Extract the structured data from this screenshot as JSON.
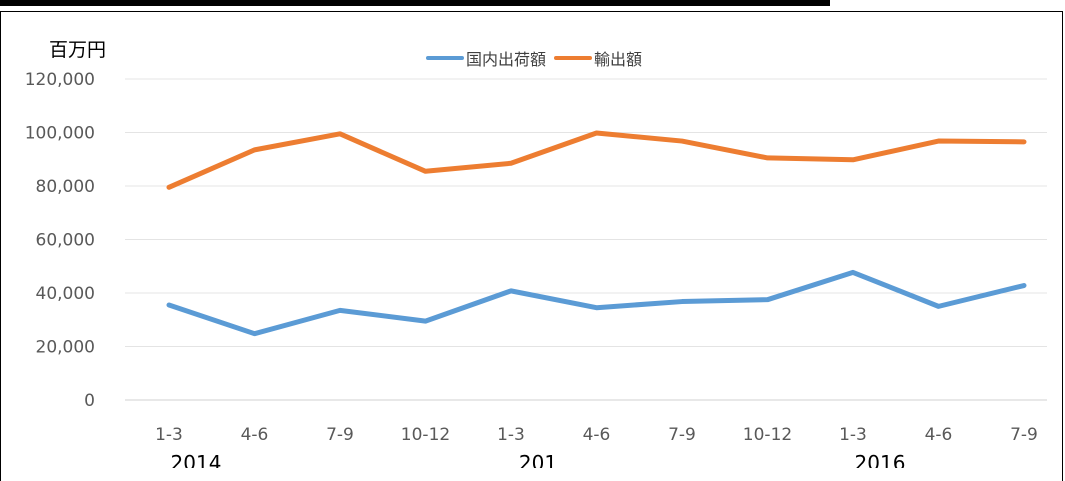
{
  "chart_data": {
    "type": "line",
    "unit_label": "百万円",
    "categories": [
      "1-3",
      "4-6",
      "7-9",
      "10-12",
      "1-3",
      "4-6",
      "7-9",
      "10-12",
      "1-3",
      "4-6",
      "7-9"
    ],
    "year_labels": [
      "2014",
      "201",
      "2016"
    ],
    "series": [
      {
        "name": "国内出荷額",
        "color": "#5b9bd5",
        "values": [
          35500,
          24800,
          33500,
          29500,
          40800,
          34500,
          36800,
          37500,
          47700,
          35000,
          42800
        ]
      },
      {
        "name": "輸出額",
        "color": "#ed7d31",
        "values": [
          79500,
          93500,
          99500,
          85500,
          88500,
          99800,
          96800,
          90500,
          89800,
          96800,
          96500
        ]
      }
    ],
    "y_ticks": [
      "0",
      "20,000",
      "40,000",
      "60,000",
      "80,000",
      "100,000",
      "120,000"
    ],
    "ylim": [
      0,
      120000
    ],
    "grid": true,
    "legend": "top-center"
  }
}
